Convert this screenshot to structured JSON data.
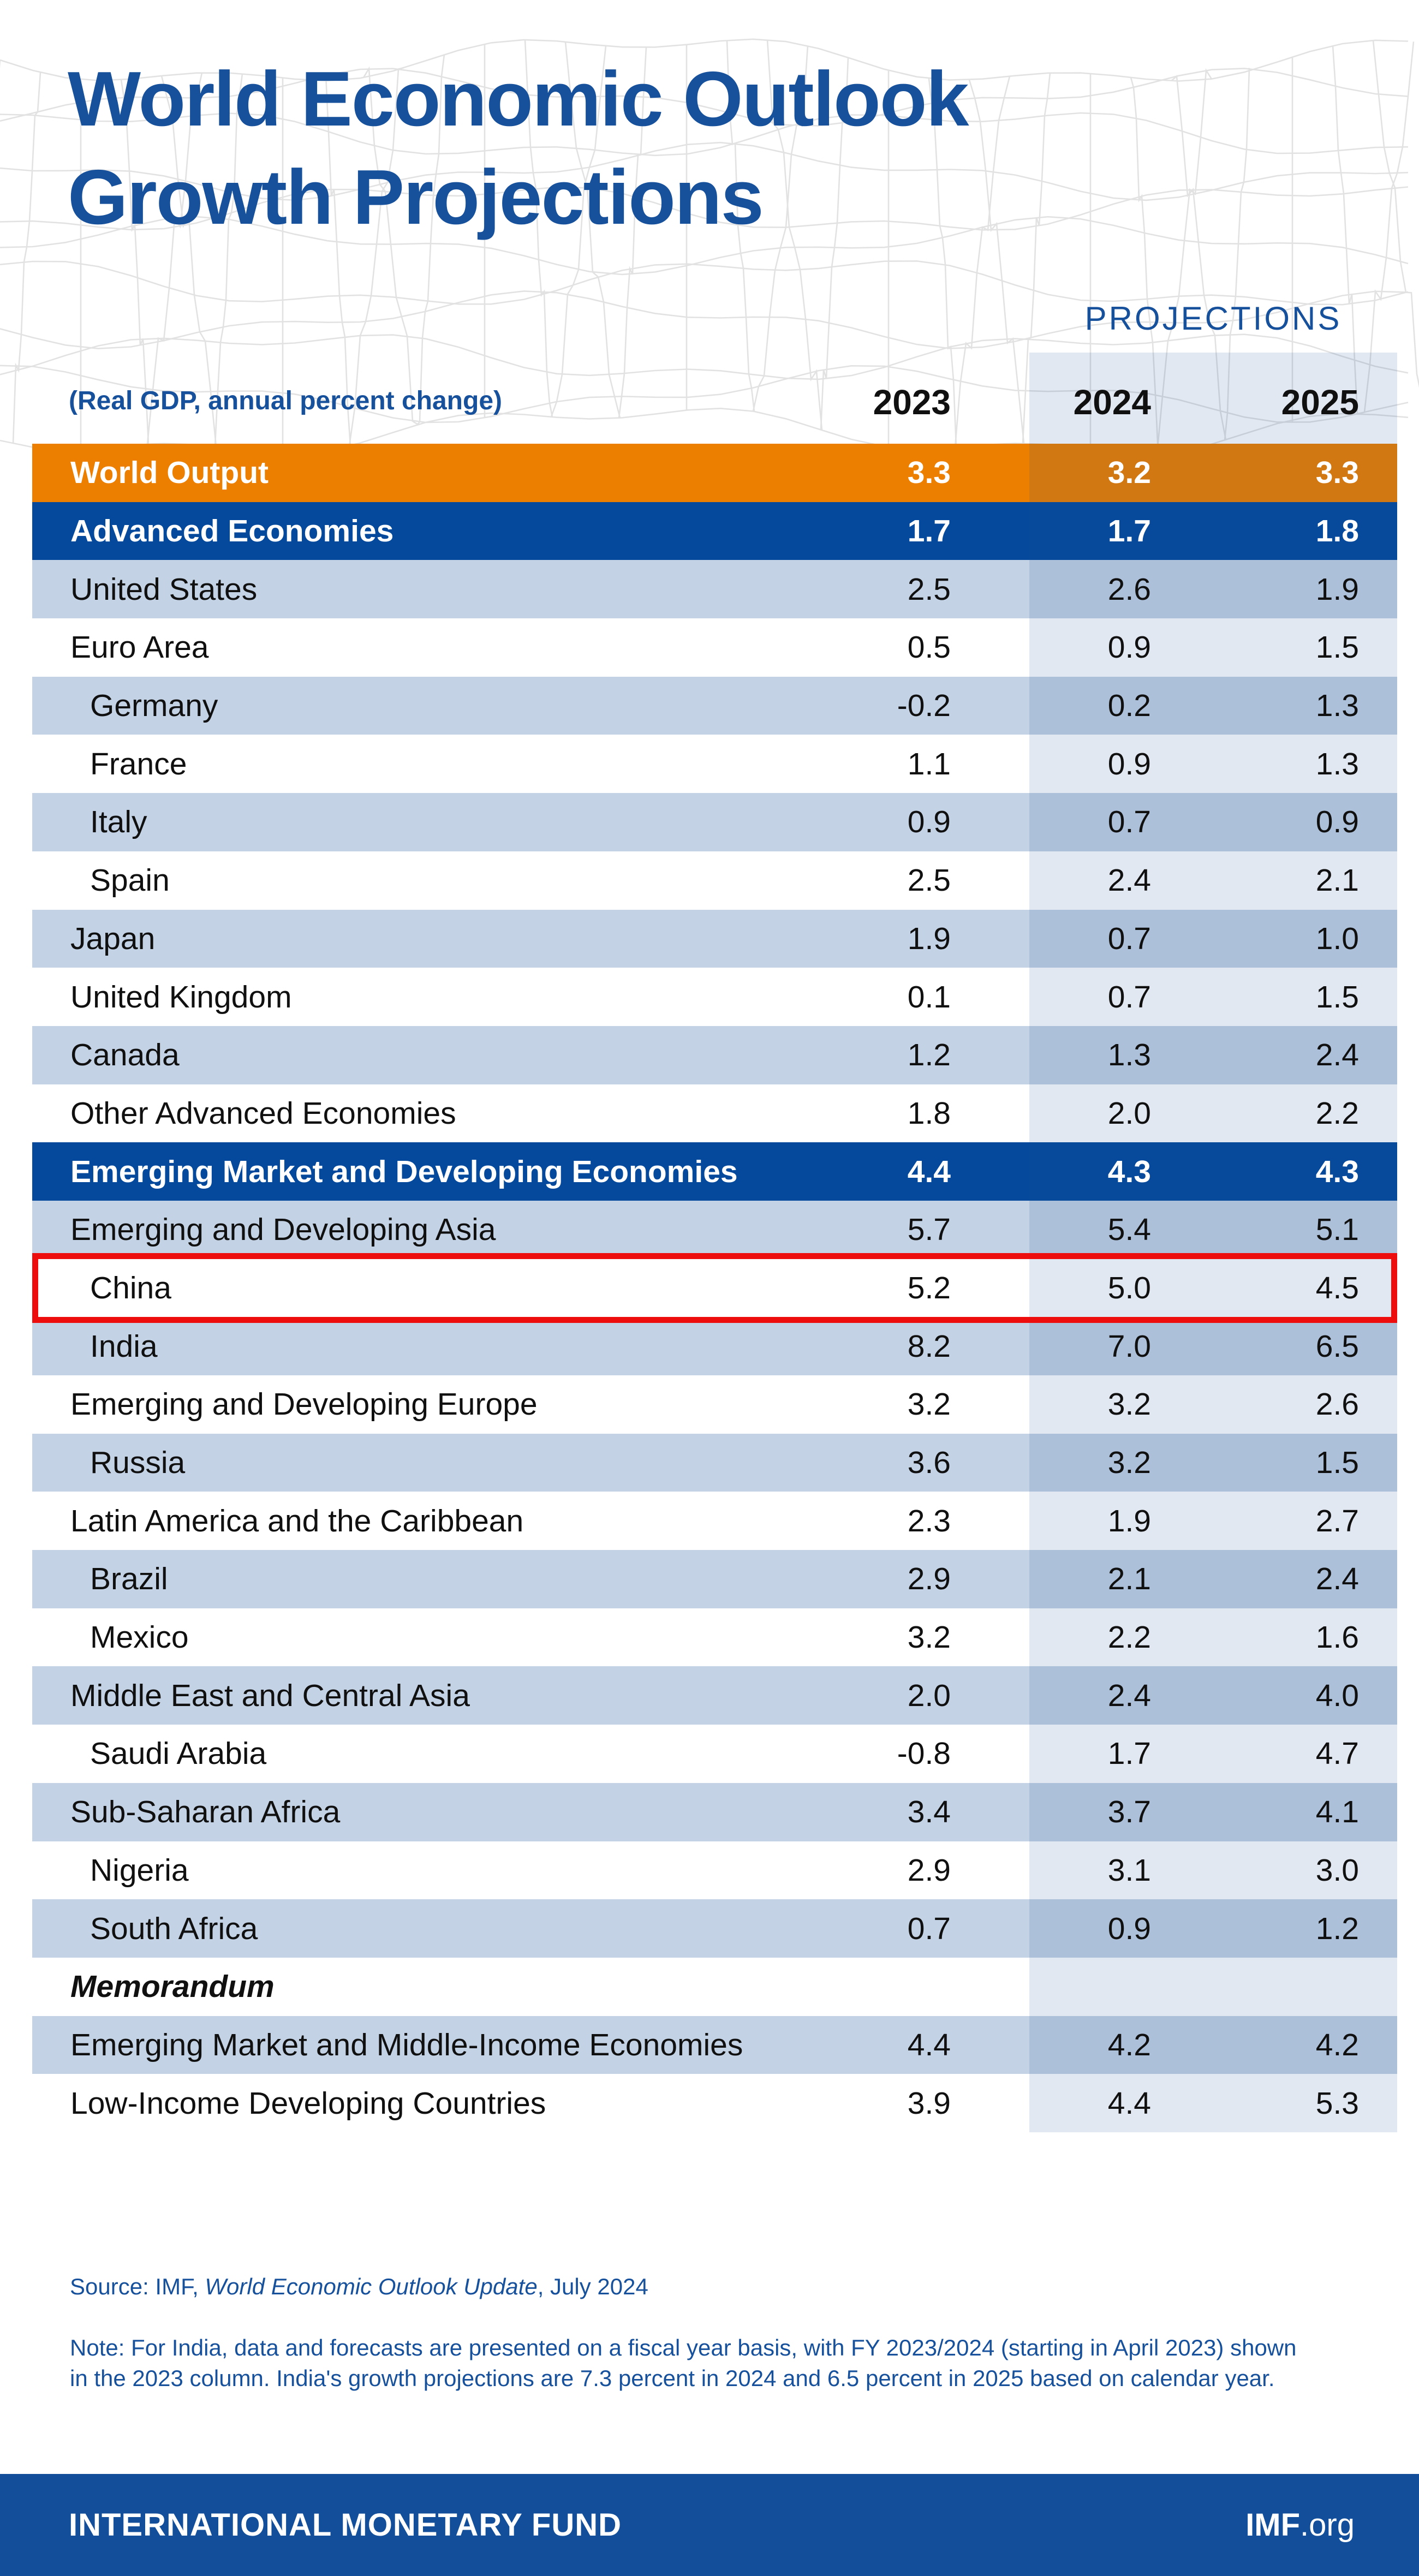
{
  "title": {
    "line1": "World Economic Outlook",
    "line2": "Growth Projections"
  },
  "header": {
    "projections_label": "PROJECTIONS",
    "subtitle": "(Real GDP, annual percent change)",
    "years": {
      "y2023": "2023",
      "y2024": "2024",
      "y2025": "2025"
    }
  },
  "table": {
    "rows": [
      {
        "label": "World Output",
        "type": "orange",
        "indent": false,
        "values": [
          "3.3",
          "3.2",
          "3.3"
        ]
      },
      {
        "label": "Advanced Economies",
        "type": "navy",
        "indent": false,
        "values": [
          "1.7",
          "1.7",
          "1.8"
        ]
      },
      {
        "label": "United States",
        "type": "lt",
        "indent": false,
        "values": [
          "2.5",
          "2.6",
          "1.9"
        ]
      },
      {
        "label": "Euro Area",
        "type": "wt",
        "indent": false,
        "values": [
          "0.5",
          "0.9",
          "1.5"
        ]
      },
      {
        "label": "Germany",
        "type": "lt",
        "indent": true,
        "values": [
          "-0.2",
          "0.2",
          "1.3"
        ]
      },
      {
        "label": "France",
        "type": "wt",
        "indent": true,
        "values": [
          "1.1",
          "0.9",
          "1.3"
        ]
      },
      {
        "label": "Italy",
        "type": "lt",
        "indent": true,
        "values": [
          "0.9",
          "0.7",
          "0.9"
        ]
      },
      {
        "label": "Spain",
        "type": "wt",
        "indent": true,
        "values": [
          "2.5",
          "2.4",
          "2.1"
        ]
      },
      {
        "label": "Japan",
        "type": "lt",
        "indent": false,
        "values": [
          "1.9",
          "0.7",
          "1.0"
        ]
      },
      {
        "label": "United Kingdom",
        "type": "wt",
        "indent": false,
        "values": [
          "0.1",
          "0.7",
          "1.5"
        ]
      },
      {
        "label": "Canada",
        "type": "lt",
        "indent": false,
        "values": [
          "1.2",
          "1.3",
          "2.4"
        ]
      },
      {
        "label": "Other Advanced Economies",
        "type": "wt",
        "indent": false,
        "values": [
          "1.8",
          "2.0",
          "2.2"
        ]
      },
      {
        "label": "Emerging Market and Developing Economies",
        "type": "navy",
        "indent": false,
        "values": [
          "4.4",
          "4.3",
          "4.3"
        ]
      },
      {
        "label": "Emerging and Developing Asia",
        "type": "lt",
        "indent": false,
        "values": [
          "5.7",
          "5.4",
          "5.1"
        ]
      },
      {
        "label": "China",
        "type": "wt",
        "indent": true,
        "highlight": true,
        "values": [
          "5.2",
          "5.0",
          "4.5"
        ]
      },
      {
        "label": "India",
        "type": "lt",
        "indent": true,
        "values": [
          "8.2",
          "7.0",
          "6.5"
        ]
      },
      {
        "label": "Emerging and Developing Europe",
        "type": "wt",
        "indent": false,
        "values": [
          "3.2",
          "3.2",
          "2.6"
        ]
      },
      {
        "label": "Russia",
        "type": "lt",
        "indent": true,
        "values": [
          "3.6",
          "3.2",
          "1.5"
        ]
      },
      {
        "label": "Latin America and the Caribbean",
        "type": "wt",
        "indent": false,
        "values": [
          "2.3",
          "1.9",
          "2.7"
        ]
      },
      {
        "label": "Brazil",
        "type": "lt",
        "indent": true,
        "values": [
          "2.9",
          "2.1",
          "2.4"
        ]
      },
      {
        "label": "Mexico",
        "type": "wt",
        "indent": true,
        "values": [
          "3.2",
          "2.2",
          "1.6"
        ]
      },
      {
        "label": "Middle East and Central Asia",
        "type": "lt",
        "indent": false,
        "values": [
          "2.0",
          "2.4",
          "4.0"
        ]
      },
      {
        "label": "Saudi Arabia",
        "type": "wt",
        "indent": true,
        "values": [
          "-0.8",
          "1.7",
          "4.7"
        ]
      },
      {
        "label": "Sub-Saharan Africa",
        "type": "lt",
        "indent": false,
        "values": [
          "3.4",
          "3.7",
          "4.1"
        ]
      },
      {
        "label": "Nigeria",
        "type": "wt",
        "indent": true,
        "values": [
          "2.9",
          "3.1",
          "3.0"
        ]
      },
      {
        "label": "South Africa",
        "type": "lt",
        "indent": true,
        "values": [
          "0.7",
          "0.9",
          "1.2"
        ]
      },
      {
        "label": "Memorandum",
        "type": "wt",
        "indent": false,
        "memo": true,
        "values": []
      },
      {
        "label": "Emerging Market and Middle-Income Economies",
        "type": "lt",
        "indent": false,
        "values": [
          "4.4",
          "4.2",
          "4.2"
        ]
      },
      {
        "label": "Low-Income Developing Countries",
        "type": "wt",
        "indent": false,
        "values": [
          "3.9",
          "4.4",
          "5.3"
        ]
      }
    ]
  },
  "source": {
    "prefix": "Source: IMF, ",
    "italic": "World Economic Outlook Update",
    "suffix": ", July 2024"
  },
  "note": "Note: For India, data and forecasts are presented on a fiscal year basis, with FY 2023/2024 (starting in April 2023) shown in the 2023 column. India's growth projections are 7.3 percent in 2024 and 6.5 percent in 2025 based on calendar year.",
  "footer": {
    "left": "INTERNATIONAL MONETARY FUND",
    "right_bold": "IMF",
    "right_regular": ".org"
  },
  "colors": {
    "brand_blue": "#17519C",
    "navy_row": "#04499B",
    "orange_row": "#ED7F00",
    "light_blue_row": "#C3D2E4",
    "projection_band_tint": "rgba(28,78,150,0.13)",
    "highlight_red": "#EE0D0D",
    "footer_blue": "#124E99",
    "mesh_gray": "#DCDCDC"
  },
  "chart_data": {
    "type": "table",
    "title": "World Economic Outlook Growth Projections",
    "subtitle": "(Real GDP, annual percent change)",
    "columns": [
      "2023",
      "2024",
      "2025"
    ],
    "projection_columns": [
      "2024",
      "2025"
    ],
    "rows": [
      {
        "label": "World Output",
        "values": [
          3.3,
          3.2,
          3.3
        ]
      },
      {
        "label": "Advanced Economies",
        "values": [
          1.7,
          1.7,
          1.8
        ]
      },
      {
        "label": "United States",
        "values": [
          2.5,
          2.6,
          1.9
        ]
      },
      {
        "label": "Euro Area",
        "values": [
          0.5,
          0.9,
          1.5
        ]
      },
      {
        "label": "Germany",
        "values": [
          -0.2,
          0.2,
          1.3
        ]
      },
      {
        "label": "France",
        "values": [
          1.1,
          0.9,
          1.3
        ]
      },
      {
        "label": "Italy",
        "values": [
          0.9,
          0.7,
          0.9
        ]
      },
      {
        "label": "Spain",
        "values": [
          2.5,
          2.4,
          2.1
        ]
      },
      {
        "label": "Japan",
        "values": [
          1.9,
          0.7,
          1.0
        ]
      },
      {
        "label": "United Kingdom",
        "values": [
          0.1,
          0.7,
          1.5
        ]
      },
      {
        "label": "Canada",
        "values": [
          1.2,
          1.3,
          2.4
        ]
      },
      {
        "label": "Other Advanced Economies",
        "values": [
          1.8,
          2.0,
          2.2
        ]
      },
      {
        "label": "Emerging Market and Developing Economies",
        "values": [
          4.4,
          4.3,
          4.3
        ]
      },
      {
        "label": "Emerging and Developing Asia",
        "values": [
          5.7,
          5.4,
          5.1
        ]
      },
      {
        "label": "China",
        "values": [
          5.2,
          5.0,
          4.5
        ]
      },
      {
        "label": "India",
        "values": [
          8.2,
          7.0,
          6.5
        ]
      },
      {
        "label": "Emerging and Developing Europe",
        "values": [
          3.2,
          3.2,
          2.6
        ]
      },
      {
        "label": "Russia",
        "values": [
          3.6,
          3.2,
          1.5
        ]
      },
      {
        "label": "Latin America and the Caribbean",
        "values": [
          2.3,
          1.9,
          2.7
        ]
      },
      {
        "label": "Brazil",
        "values": [
          2.9,
          2.1,
          2.4
        ]
      },
      {
        "label": "Mexico",
        "values": [
          3.2,
          2.2,
          1.6
        ]
      },
      {
        "label": "Middle East and Central Asia",
        "values": [
          2.0,
          2.4,
          4.0
        ]
      },
      {
        "label": "Saudi Arabia",
        "values": [
          -0.8,
          1.7,
          4.7
        ]
      },
      {
        "label": "Sub-Saharan Africa",
        "values": [
          3.4,
          3.7,
          4.1
        ]
      },
      {
        "label": "Nigeria",
        "values": [
          2.9,
          3.1,
          3.0
        ]
      },
      {
        "label": "South Africa",
        "values": [
          0.7,
          0.9,
          1.2
        ]
      },
      {
        "label": "Memorandum",
        "values": [
          null,
          null,
          null
        ]
      },
      {
        "label": "Emerging Market and Middle-Income Economies",
        "values": [
          4.4,
          4.2,
          4.2
        ]
      },
      {
        "label": "Low-Income Developing Countries",
        "values": [
          3.9,
          4.4,
          5.3
        ]
      }
    ],
    "highlighted_row": "China"
  }
}
